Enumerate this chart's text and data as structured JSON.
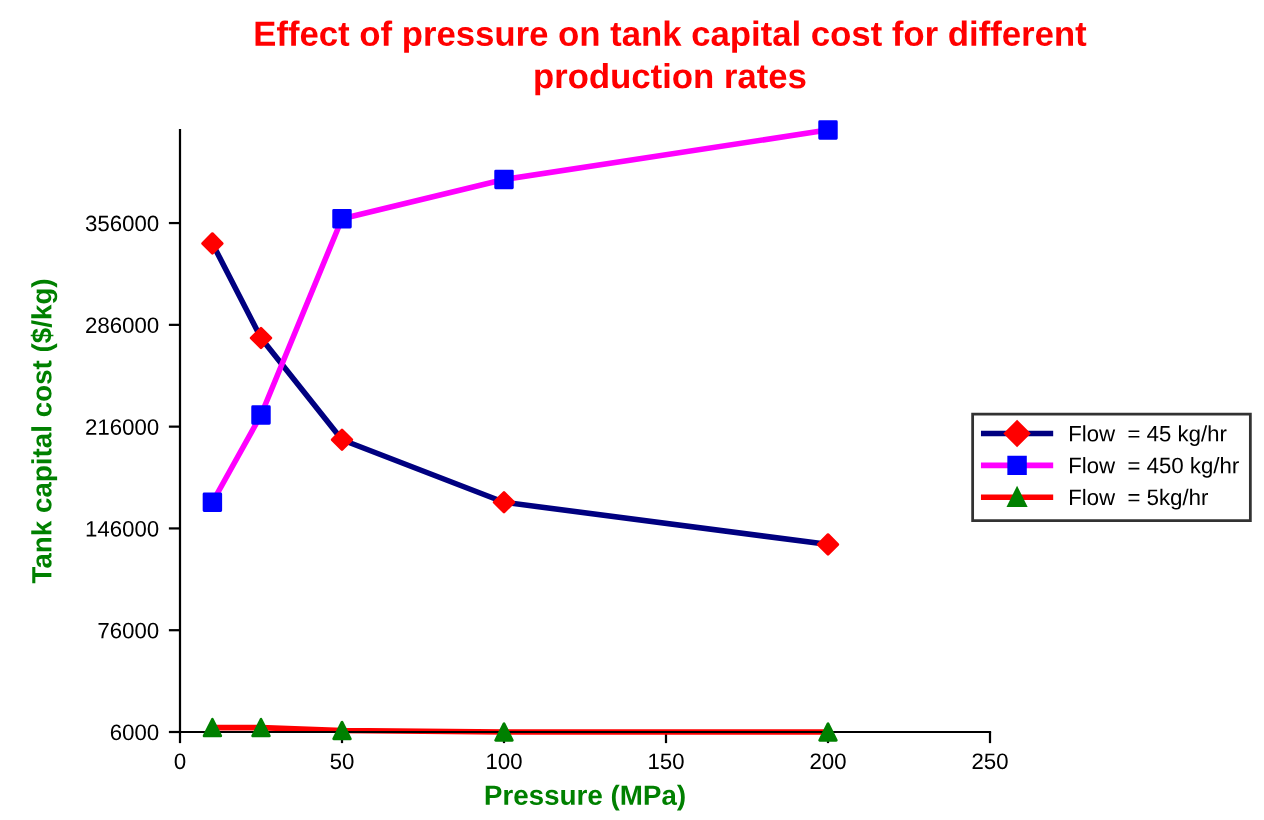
{
  "chart_data": {
    "type": "line",
    "title": "Effect of pressure on tank capital cost for different\nproduction rates",
    "xlabel": "Pressure (MPa)",
    "ylabel": "Tank capital cost ($/kg)",
    "x": [
      10,
      25,
      50,
      100,
      200
    ],
    "series": [
      {
        "name": "Flow  = 45 kg/hr",
        "color": "#000080",
        "colors": [
          "#ff0000",
          "#ff0000",
          "#ff0000",
          "#ff0000",
          "#ff0000"
        ],
        "marker": "diamond",
        "values": [
          342000,
          277000,
          207000,
          164000,
          135000
        ]
      },
      {
        "name": "Flow  = 450 kg/hr",
        "color": "#ff00ff",
        "colors": [
          "#0000ff",
          "#0000ff",
          "#0000ff",
          "#0000ff",
          "#0000ff"
        ],
        "marker": "square",
        "values": [
          164000,
          224000,
          359000,
          386000,
          420000
        ]
      },
      {
        "name": "Flow  = 5kg/hr",
        "color": "#ff0000",
        "colors": [
          "#008000",
          "#008000",
          "#008000",
          "#008000",
          "#008000"
        ],
        "marker": "triangle",
        "values": [
          9000,
          9000,
          7000,
          6000,
          6000
        ]
      }
    ],
    "xlim": [
      0,
      250
    ],
    "xticks": [
      0,
      50,
      100,
      150,
      200,
      250
    ],
    "ylim": [
      6000,
      420000
    ],
    "yticks": [
      6000,
      76000,
      146000,
      216000,
      286000,
      356000
    ],
    "grid": false,
    "legend": "right"
  }
}
